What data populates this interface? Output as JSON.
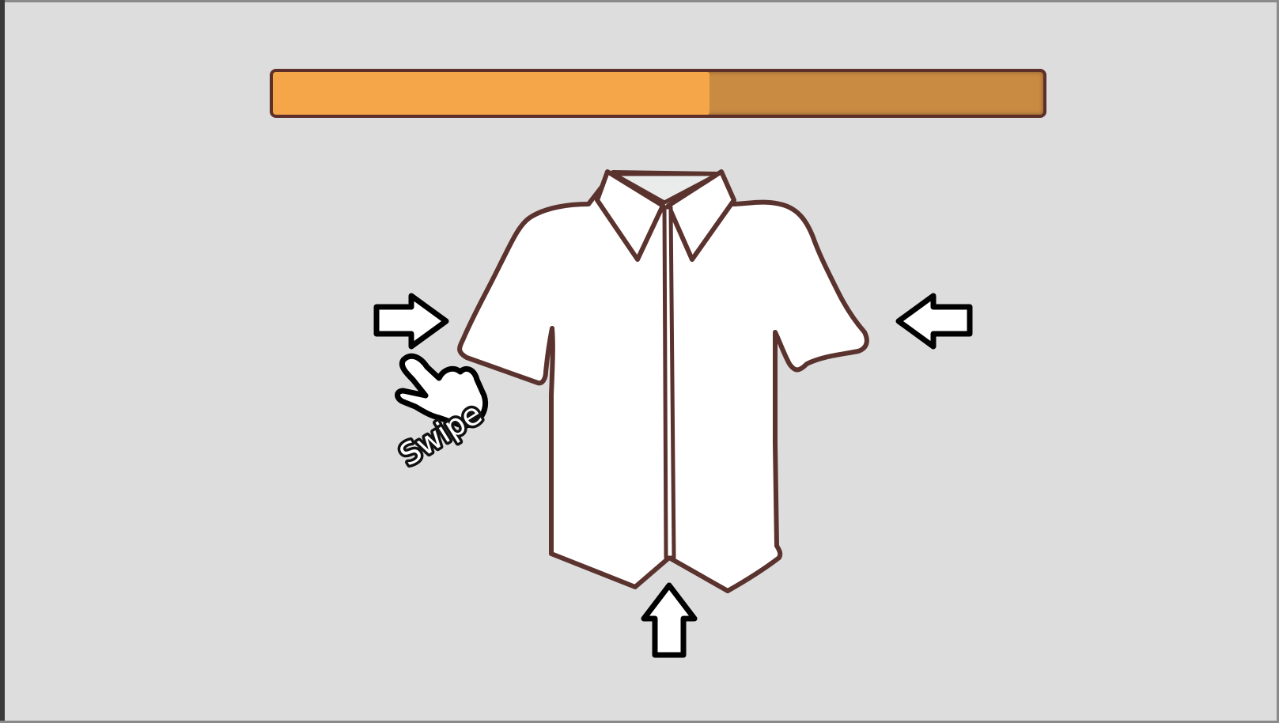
{
  "hint": {
    "label": "Swipe"
  },
  "progress": {
    "fraction": 0.567,
    "fill_color": "#f5a648",
    "track_color": "#c98a42",
    "border_color": "#5e2e2a"
  },
  "icons": {
    "left_arrow": "arrow-right-icon",
    "right_arrow": "arrow-left-icon",
    "bottom_arrow": "arrow-up-icon",
    "hand": "hand-pointer-icon",
    "shirt": "shirt-icon"
  },
  "colors": {
    "background": "#dcdddc",
    "shirt_fill": "#ffffff",
    "shirt_outline": "#5a322e",
    "arrow_outline": "#000000"
  }
}
